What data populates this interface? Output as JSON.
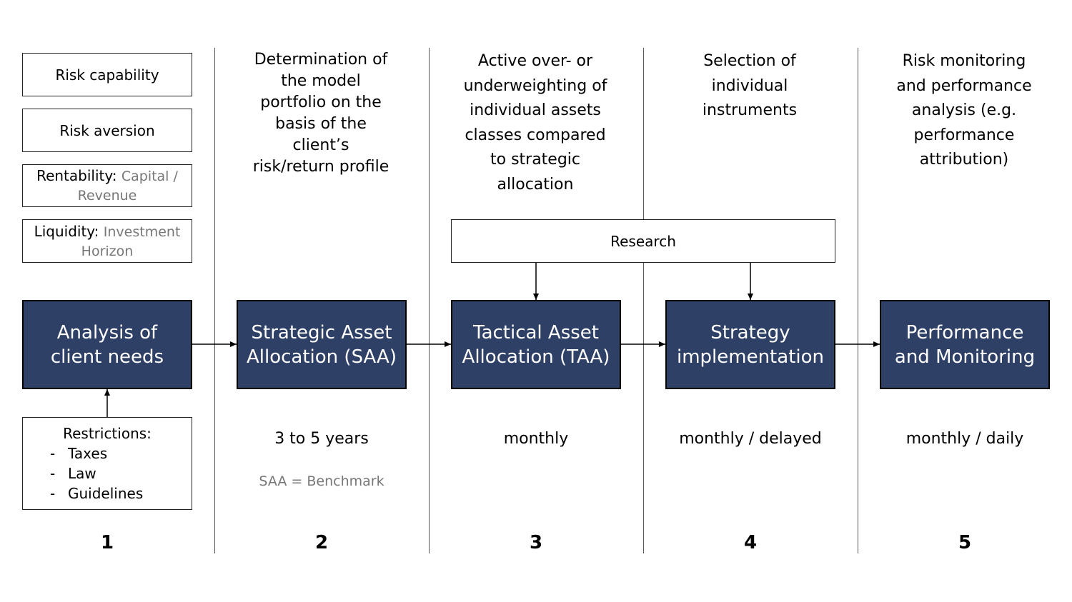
{
  "needs": {
    "risk_capability": "Risk capability",
    "risk_aversion": "Risk aversion",
    "rentability_label": "Rentability:",
    "rentability_value": "Capital / Revenue",
    "liquidity_label": "Liquidity:",
    "liquidity_value": "Investment Horizon"
  },
  "stages": [
    {
      "line1": "Analysis of",
      "line2": "client needs",
      "description": [],
      "frequency": "",
      "number": "1"
    },
    {
      "line1": "Strategic Asset",
      "line2": "Allocation (SAA)",
      "description": [
        "Determination of",
        "the model",
        "portfolio on the",
        "basis of the",
        "client’s",
        "risk/return profile"
      ],
      "frequency": "3 to 5 years",
      "note": "SAA = Benchmark",
      "number": "2"
    },
    {
      "line1": "Tactical Asset",
      "line2": "Allocation (TAA)",
      "description": [
        "Active over- or",
        "underweighting of",
        "individual assets",
        "classes compared",
        "to strategic",
        "allocation"
      ],
      "frequency": "monthly",
      "number": "3"
    },
    {
      "line1": "Strategy",
      "line2": "implementation",
      "description": [
        "Selection of",
        "individual",
        "instruments"
      ],
      "frequency": "monthly / delayed",
      "number": "4"
    },
    {
      "line1": "Performance",
      "line2": "and Monitoring",
      "description": [
        "Risk monitoring",
        "and performance",
        "analysis (e.g.",
        "performance",
        "attribution)"
      ],
      "frequency": "monthly / daily",
      "number": "5"
    }
  ],
  "research": {
    "label": "Research"
  },
  "restrictions": {
    "title": "Restrictions:",
    "items": [
      "Taxes",
      "Law",
      "Guidelines"
    ]
  },
  "colors": {
    "stage_fill": "#2e4065",
    "note_text": "#777777"
  }
}
